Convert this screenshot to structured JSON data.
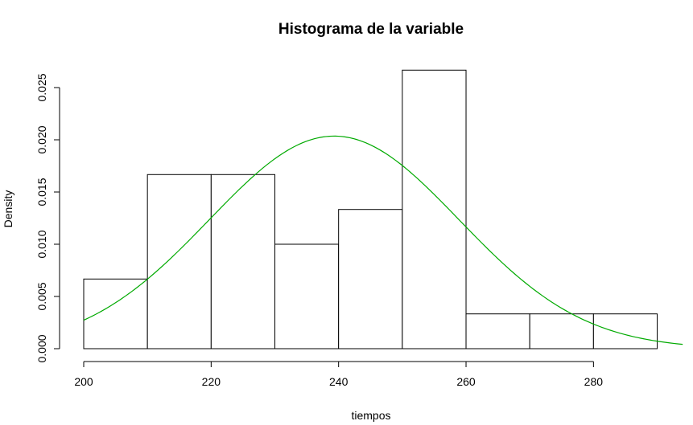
{
  "chart_data": {
    "type": "bar",
    "title": "Histograma de la variable",
    "xlabel": "tiempos",
    "ylabel": "Density",
    "xlim": [
      200,
      294
    ],
    "ylim": [
      0,
      0.0265
    ],
    "x_ticks": [
      200,
      220,
      240,
      260,
      280
    ],
    "x_tick_labels": [
      "200",
      "220",
      "240",
      "260",
      "280"
    ],
    "y_ticks": [
      0,
      0.005,
      0.01,
      0.015,
      0.02,
      0.025
    ],
    "y_tick_labels": [
      "0.000",
      "0.005",
      "0.010",
      "0.015",
      "0.020",
      "0.025"
    ],
    "bins": [
      {
        "x0": 200,
        "x1": 210,
        "density": 0.00667
      },
      {
        "x0": 210,
        "x1": 220,
        "density": 0.01667
      },
      {
        "x0": 220,
        "x1": 230,
        "density": 0.01667
      },
      {
        "x0": 230,
        "x1": 240,
        "density": 0.01
      },
      {
        "x0": 240,
        "x1": 250,
        "density": 0.01333
      },
      {
        "x0": 250,
        "x1": 260,
        "density": 0.02667
      },
      {
        "x0": 260,
        "x1": 270,
        "density": 0.00333
      },
      {
        "x0": 270,
        "x1": 280,
        "density": 0.00333
      },
      {
        "x0": 280,
        "x1": 290,
        "density": 0.00333
      }
    ],
    "density_curve": {
      "type": "normal",
      "mean": 239.3,
      "sd": 19.6,
      "x_range": [
        200,
        294
      ],
      "color": "#00aa00"
    },
    "grid": false,
    "legend": "none"
  }
}
